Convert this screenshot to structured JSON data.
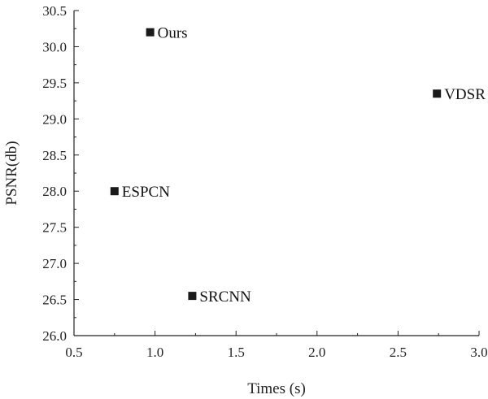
{
  "chart_data": {
    "type": "scatter",
    "title": "",
    "xlabel": "Times (s)",
    "ylabel": "PSNR(db)",
    "xlim": [
      0.5,
      3.0
    ],
    "ylim": [
      26.0,
      30.5
    ],
    "x_ticks": [
      "0.5",
      "1.0",
      "1.5",
      "2.0",
      "2.5",
      "3.0"
    ],
    "y_ticks": [
      "26.0",
      "26.5",
      "27.0",
      "27.5",
      "28.0",
      "28.5",
      "29.0",
      "29.5",
      "30.0",
      "30.5"
    ],
    "grid": false,
    "legend": "none",
    "marker_color": "#1a1a1a",
    "points": [
      {
        "label": "Ours",
        "x": 0.97,
        "y": 30.2
      },
      {
        "label": "VDSR",
        "x": 2.74,
        "y": 29.35
      },
      {
        "label": "ESPCN",
        "x": 0.75,
        "y": 28.0
      },
      {
        "label": "SRCNN",
        "x": 1.23,
        "y": 26.55
      }
    ]
  }
}
